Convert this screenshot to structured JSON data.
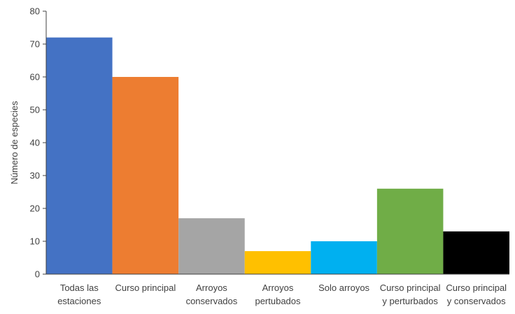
{
  "chart_data": {
    "type": "bar",
    "title": "",
    "xlabel": "",
    "ylabel": "Número de especies",
    "ylim": [
      0,
      80
    ],
    "yticks": [
      0,
      10,
      20,
      30,
      40,
      50,
      60,
      70,
      80
    ],
    "grid": false,
    "legend": "none",
    "categories": [
      [
        "Todas las",
        "estaciones"
      ],
      [
        "Curso principal"
      ],
      [
        "Arroyos",
        "conservados"
      ],
      [
        "Arroyos",
        "pertubados"
      ],
      [
        "Solo arroyos"
      ],
      [
        "Curso principal",
        "y perturbados"
      ],
      [
        "Curso principal",
        "y conservados"
      ]
    ],
    "values": [
      72,
      60,
      17,
      7,
      10,
      26,
      13
    ],
    "colors": [
      "#4472C4",
      "#ED7D31",
      "#A5A5A5",
      "#FFC000",
      "#00B0F0",
      "#70AD47",
      "#000000"
    ]
  }
}
